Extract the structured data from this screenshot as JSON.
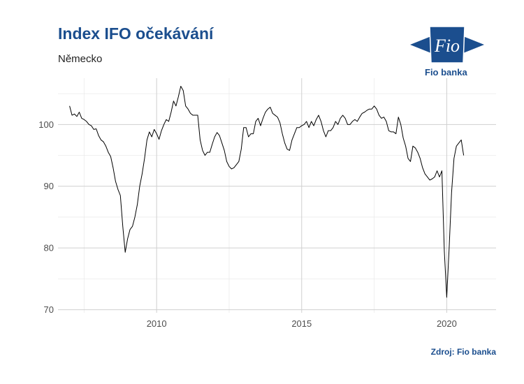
{
  "header": {
    "title": "Index IFO očekávání",
    "subtitle": "Německo"
  },
  "logo": {
    "mark_text": "Fio",
    "name": "Fio banka",
    "color": "#1b4e8e"
  },
  "footer": {
    "source": "Zdroj: Fio banka"
  },
  "chart_data": {
    "type": "line",
    "title": "Index IFO očekávání",
    "subtitle": "Německo",
    "xlabel": "",
    "ylabel": "",
    "xlim": [
      2006.6,
      2021.7
    ],
    "ylim": [
      69.5,
      107.5
    ],
    "x_ticks": [
      {
        "value": 2010,
        "label": "2010"
      },
      {
        "value": 2015,
        "label": "2015"
      },
      {
        "value": 2020,
        "label": "2020"
      }
    ],
    "y_ticks": [
      {
        "value": 70,
        "label": "70"
      },
      {
        "value": 80,
        "label": "80"
      },
      {
        "value": 90,
        "label": "90"
      },
      {
        "value": 100,
        "label": "100"
      }
    ],
    "minor_x": [
      2007.5,
      2012.5,
      2017.5
    ],
    "minor_y": [
      75,
      85,
      95,
      105
    ],
    "grid": true,
    "legend": "none",
    "line_color": "#000000",
    "series": [
      {
        "name": "",
        "start": [
          2007,
          1
        ],
        "frequency": "monthly",
        "values": [
          103.0,
          101.5,
          101.7,
          101.3,
          102.0,
          101.0,
          100.8,
          100.5,
          100.0,
          99.8,
          99.2,
          99.3,
          98.2,
          97.5,
          97.2,
          96.5,
          95.5,
          94.8,
          93.0,
          90.8,
          89.5,
          88.5,
          83.5,
          79.3,
          81.5,
          83.0,
          83.5,
          85.0,
          87.0,
          90.0,
          92.0,
          94.5,
          97.5,
          98.8,
          98.0,
          99.2,
          98.5,
          97.6,
          99.0,
          100.0,
          100.8,
          100.5,
          102.0,
          103.8,
          103.0,
          104.5,
          106.2,
          105.5,
          103.0,
          102.5,
          101.8,
          101.5,
          101.5,
          101.5,
          97.5,
          95.8,
          95.0,
          95.5,
          95.5,
          96.8,
          98.0,
          98.7,
          98.2,
          97.0,
          95.8,
          94.0,
          93.2,
          92.8,
          93.0,
          93.5,
          94.0,
          96.0,
          99.5,
          99.5,
          98.0,
          98.5,
          98.5,
          100.5,
          101.0,
          99.8,
          101.0,
          102.0,
          102.5,
          102.8,
          101.8,
          101.5,
          101.2,
          100.3,
          98.5,
          97.0,
          96.0,
          95.8,
          97.5,
          98.5,
          99.5,
          99.5,
          99.8,
          100.0,
          100.5,
          99.5,
          100.5,
          99.8,
          100.8,
          101.5,
          100.5,
          99.0,
          98.0,
          99.0,
          99.0,
          99.5,
          100.5,
          100.0,
          101.0,
          101.5,
          101.0,
          100.0,
          100.0,
          100.5,
          100.8,
          100.5,
          101.2,
          101.8,
          102.0,
          102.3,
          102.5,
          102.5,
          103.0,
          102.5,
          101.5,
          101.0,
          101.2,
          100.5,
          99.0,
          98.8,
          98.8,
          98.5,
          101.2,
          100.0,
          97.8,
          96.5,
          94.5,
          94.0,
          96.5,
          96.2,
          95.5,
          94.5,
          93.0,
          92.0,
          91.5,
          91.0,
          91.2,
          91.5,
          92.5,
          91.5,
          92.5,
          79.5,
          72.0,
          80.0,
          89.0,
          94.5,
          96.5,
          97.0,
          97.5,
          95.0
        ]
      }
    ]
  }
}
